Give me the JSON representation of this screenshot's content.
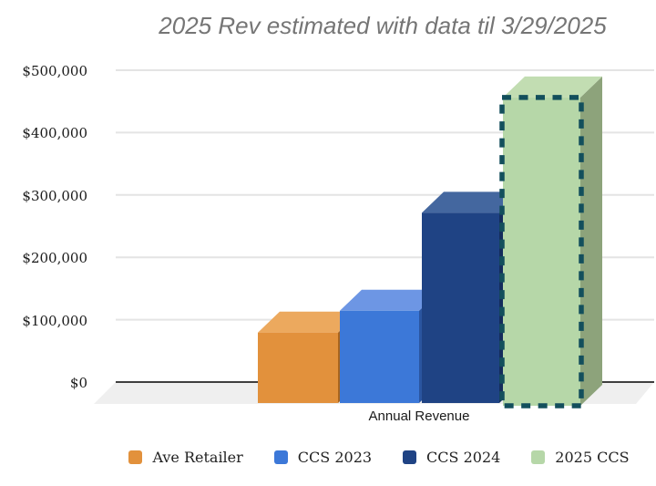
{
  "chart_data": {
    "type": "bar",
    "variant": "3d-column",
    "title": "2025 Rev estimated with data til 3/29/2025",
    "xlabel": "Annual Revenue",
    "ylabel": "",
    "categories": [
      "Annual Revenue"
    ],
    "series": [
      {
        "name": "Ave Retailer",
        "value": 113000,
        "color": "#E2913C",
        "top_color": "#ECA95E",
        "side_color": "#A8651F"
      },
      {
        "name": "CCS 2023",
        "value": 148000,
        "color": "#3C78D8",
        "top_color": "#6D96E4",
        "side_color": "#2A55A0"
      },
      {
        "name": "CCS 2024",
        "value": 305000,
        "color": "#1F4384",
        "top_color": "#44679F",
        "side_color": "#142C5C"
      },
      {
        "name": "2025 CCS",
        "value": 490000,
        "color": "#B6D7A8",
        "top_color": "#C2DDB2",
        "side_color": "#8DA37B",
        "highlighted": true,
        "highlight_border_color": "#134F5C",
        "highlight_border_style": "dashed"
      }
    ],
    "y_ticks": [
      "$0",
      "$100,000",
      "$200,000",
      "$300,000",
      "$400,000",
      "$500,000"
    ],
    "ylim": [
      0,
      500000
    ],
    "grid": true,
    "legend_position": "bottom",
    "palette": {
      "grid_line": "#E4E4E4",
      "axis_line": "#3F3F3F",
      "floor": "#EFEFEF",
      "title_color": "#757575",
      "text_color": "#1A1A1A"
    }
  }
}
